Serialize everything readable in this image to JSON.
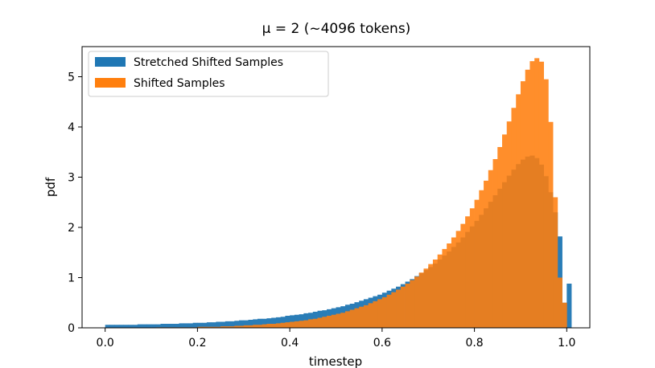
{
  "chart_data": {
    "type": "histogram",
    "title": "μ = 2 (~4096 tokens)",
    "xlabel": "timestep",
    "ylabel": "pdf",
    "xlim": [
      -0.05,
      1.05
    ],
    "ylim": [
      0,
      5.6
    ],
    "xticks": [
      "0.0",
      "0.2",
      "0.4",
      "0.6",
      "0.8",
      "1.0"
    ],
    "yticks": [
      "0",
      "1",
      "2",
      "3",
      "4",
      "5"
    ],
    "grid": false,
    "legend": {
      "position": "top-left"
    },
    "bin_width": 0.01,
    "bin_start": 0.0,
    "series": [
      {
        "name": "Stretched Shifted Samples",
        "color": "#1f77b4",
        "values": [
          0.06,
          0.06,
          0.06,
          0.06,
          0.06,
          0.06,
          0.06,
          0.07,
          0.07,
          0.07,
          0.07,
          0.07,
          0.08,
          0.08,
          0.08,
          0.08,
          0.09,
          0.09,
          0.09,
          0.1,
          0.1,
          0.1,
          0.11,
          0.11,
          0.12,
          0.12,
          0.13,
          0.13,
          0.14,
          0.15,
          0.15,
          0.16,
          0.17,
          0.18,
          0.18,
          0.19,
          0.2,
          0.21,
          0.22,
          0.24,
          0.25,
          0.26,
          0.27,
          0.29,
          0.3,
          0.32,
          0.34,
          0.35,
          0.37,
          0.39,
          0.41,
          0.43,
          0.46,
          0.48,
          0.51,
          0.54,
          0.57,
          0.6,
          0.63,
          0.66,
          0.7,
          0.74,
          0.78,
          0.82,
          0.87,
          0.92,
          0.97,
          1.03,
          1.09,
          1.15,
          1.21,
          1.28,
          1.36,
          1.44,
          1.52,
          1.61,
          1.7,
          1.8,
          1.91,
          2.02,
          2.13,
          2.25,
          2.38,
          2.51,
          2.64,
          2.77,
          2.9,
          3.03,
          3.15,
          3.26,
          3.35,
          3.41,
          3.43,
          3.38,
          3.25,
          3.02,
          2.7,
          2.3,
          1.82,
          0.5,
          0.88
        ]
      },
      {
        "name": "Shifted Samples",
        "color": "#ff7f0e",
        "values": [
          0.0,
          0.0,
          0.0,
          0.0,
          0.0,
          0.0,
          0.0,
          0.0,
          0.0,
          0.0,
          0.0,
          0.01,
          0.01,
          0.01,
          0.01,
          0.01,
          0.01,
          0.01,
          0.01,
          0.01,
          0.02,
          0.02,
          0.02,
          0.02,
          0.02,
          0.03,
          0.03,
          0.03,
          0.04,
          0.04,
          0.05,
          0.05,
          0.06,
          0.06,
          0.07,
          0.08,
          0.08,
          0.09,
          0.1,
          0.11,
          0.12,
          0.13,
          0.14,
          0.15,
          0.17,
          0.18,
          0.2,
          0.22,
          0.24,
          0.26,
          0.28,
          0.3,
          0.33,
          0.36,
          0.39,
          0.42,
          0.45,
          0.49,
          0.53,
          0.57,
          0.61,
          0.66,
          0.71,
          0.76,
          0.82,
          0.88,
          0.95,
          1.02,
          1.1,
          1.18,
          1.27,
          1.36,
          1.46,
          1.57,
          1.68,
          1.8,
          1.93,
          2.07,
          2.22,
          2.38,
          2.55,
          2.74,
          2.93,
          3.14,
          3.36,
          3.6,
          3.85,
          4.11,
          4.38,
          4.65,
          4.91,
          5.14,
          5.31,
          5.37,
          5.3,
          4.95,
          4.1,
          2.6,
          1.0,
          0.5
        ]
      }
    ]
  }
}
